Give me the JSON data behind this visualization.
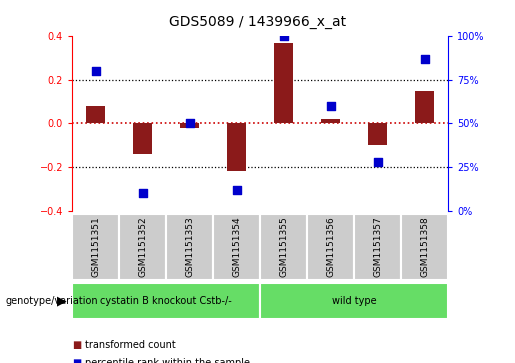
{
  "title": "GDS5089 / 1439966_x_at",
  "samples": [
    "GSM1151351",
    "GSM1151352",
    "GSM1151353",
    "GSM1151354",
    "GSM1151355",
    "GSM1151356",
    "GSM1151357",
    "GSM1151358"
  ],
  "red_values": [
    0.08,
    -0.14,
    -0.02,
    -0.22,
    0.37,
    0.02,
    -0.1,
    0.15
  ],
  "blue_values_pct": [
    80,
    10,
    50,
    12,
    100,
    60,
    28,
    87
  ],
  "group1_label": "cystatin B knockout Cstb-/-",
  "group2_label": "wild type",
  "group1_indices": [
    0,
    1,
    2,
    3
  ],
  "group2_indices": [
    4,
    5,
    6,
    7
  ],
  "green_color": "#66DD66",
  "ylim": [
    -0.4,
    0.4
  ],
  "yticks_left": [
    -0.4,
    -0.2,
    0.0,
    0.2,
    0.4
  ],
  "yticks_right_pct": [
    0,
    25,
    50,
    75,
    100
  ],
  "red_bar_color": "#8B1A1A",
  "blue_dot_color": "#0000CC",
  "bar_width": 0.4,
  "dot_size": 40,
  "legend_red_label": "transformed count",
  "legend_blue_label": "percentile rank within the sample",
  "genotype_label": "genotype/variation",
  "hline_color": "#CC0000",
  "gray_color": "#CCCCCC",
  "label_fontsize": 6.5,
  "title_fontsize": 10
}
